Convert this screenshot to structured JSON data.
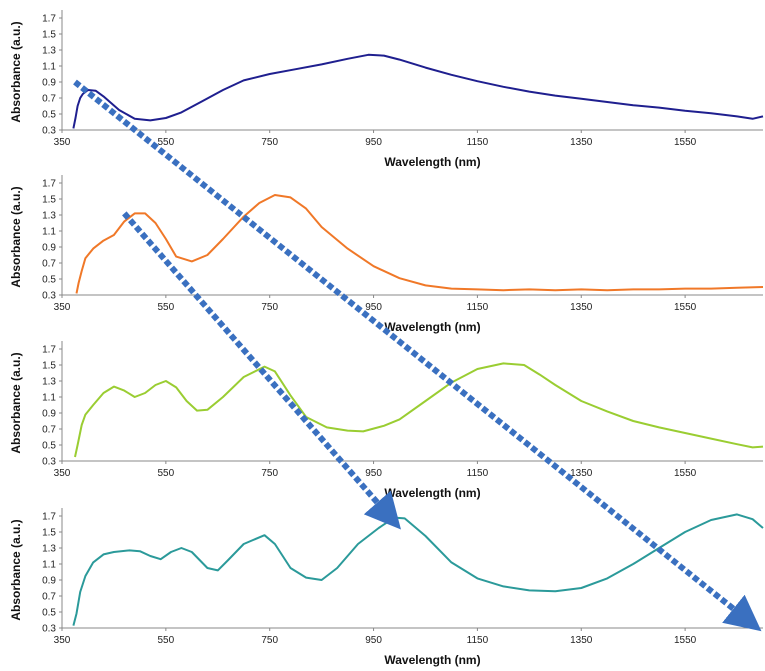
{
  "chart_data": [
    {
      "type": "line",
      "xlabel": "Wavelength (nm)",
      "ylabel": "Absorbance (a.u.)",
      "xlim": [
        350,
        1700
      ],
      "ylim": [
        0.3,
        1.75
      ],
      "xticks": [
        350,
        550,
        750,
        950,
        1150,
        1350,
        1550
      ],
      "yticks": [
        0.3,
        0.5,
        0.7,
        0.9,
        1.1,
        1.3,
        1.5,
        1.7
      ],
      "grid": false,
      "series": [
        {
          "color": "#1f1f8f",
          "x": [
            372,
            376,
            380,
            385,
            390,
            400,
            415,
            430,
            460,
            490,
            520,
            550,
            580,
            620,
            660,
            700,
            750,
            800,
            850,
            900,
            940,
            970,
            1000,
            1050,
            1100,
            1150,
            1200,
            1250,
            1300,
            1350,
            1400,
            1450,
            1500,
            1550,
            1600,
            1650,
            1680,
            1700
          ],
          "y": [
            0.32,
            0.45,
            0.6,
            0.7,
            0.75,
            0.8,
            0.79,
            0.72,
            0.55,
            0.44,
            0.42,
            0.45,
            0.52,
            0.66,
            0.8,
            0.92,
            1.0,
            1.06,
            1.12,
            1.19,
            1.24,
            1.23,
            1.18,
            1.08,
            0.99,
            0.91,
            0.84,
            0.78,
            0.73,
            0.69,
            0.65,
            0.61,
            0.58,
            0.54,
            0.51,
            0.47,
            0.44,
            0.47
          ]
        },
        {
          "color": "#f07828",
          "x": [
            378,
            382,
            388,
            395,
            410,
            430,
            450,
            470,
            490,
            510,
            530,
            550,
            570,
            600,
            630,
            660,
            700,
            730,
            760,
            790,
            820,
            850,
            900,
            950,
            1000,
            1050,
            1100,
            1150,
            1200,
            1250,
            1300,
            1350,
            1400,
            1450,
            1500,
            1550,
            1600,
            1650,
            1700
          ],
          "y": [
            0.32,
            0.45,
            0.6,
            0.76,
            0.88,
            0.98,
            1.05,
            1.22,
            1.32,
            1.32,
            1.2,
            1.0,
            0.78,
            0.72,
            0.8,
            1.0,
            1.28,
            1.45,
            1.55,
            1.52,
            1.38,
            1.15,
            0.88,
            0.66,
            0.51,
            0.42,
            0.38,
            0.37,
            0.36,
            0.37,
            0.36,
            0.37,
            0.36,
            0.37,
            0.37,
            0.38,
            0.38,
            0.39,
            0.4
          ]
        },
        {
          "color": "#9acd32",
          "x": [
            375,
            380,
            388,
            395,
            410,
            430,
            450,
            470,
            490,
            510,
            530,
            550,
            570,
            590,
            610,
            630,
            660,
            700,
            740,
            760,
            790,
            820,
            860,
            900,
            930,
            970,
            1000,
            1050,
            1100,
            1150,
            1200,
            1240,
            1270,
            1300,
            1350,
            1400,
            1450,
            1500,
            1550,
            1600,
            1650,
            1680,
            1700
          ],
          "y": [
            0.35,
            0.5,
            0.75,
            0.88,
            1.0,
            1.15,
            1.23,
            1.18,
            1.1,
            1.15,
            1.25,
            1.3,
            1.22,
            1.05,
            0.93,
            0.94,
            1.1,
            1.35,
            1.48,
            1.42,
            1.12,
            0.85,
            0.72,
            0.68,
            0.67,
            0.74,
            0.82,
            1.05,
            1.28,
            1.45,
            1.52,
            1.5,
            1.38,
            1.25,
            1.05,
            0.92,
            0.8,
            0.72,
            0.65,
            0.58,
            0.51,
            0.47,
            0.48
          ]
        },
        {
          "color": "#2b9a9a",
          "x": [
            372,
            378,
            385,
            395,
            410,
            430,
            450,
            480,
            500,
            520,
            540,
            560,
            580,
            600,
            630,
            650,
            670,
            700,
            740,
            760,
            790,
            820,
            850,
            880,
            920,
            960,
            990,
            1010,
            1050,
            1100,
            1150,
            1200,
            1250,
            1300,
            1350,
            1400,
            1450,
            1500,
            1550,
            1600,
            1650,
            1680,
            1700
          ],
          "y": [
            0.33,
            0.48,
            0.75,
            0.95,
            1.12,
            1.22,
            1.25,
            1.27,
            1.26,
            1.2,
            1.16,
            1.25,
            1.3,
            1.25,
            1.05,
            1.02,
            1.15,
            1.35,
            1.46,
            1.35,
            1.05,
            0.93,
            0.9,
            1.05,
            1.35,
            1.55,
            1.68,
            1.67,
            1.45,
            1.12,
            0.92,
            0.82,
            0.77,
            0.76,
            0.8,
            0.92,
            1.1,
            1.3,
            1.5,
            1.65,
            1.72,
            1.66,
            1.55
          ]
        }
      ],
      "annotations": [
        {
          "type": "arrow",
          "color": "#3a70c0",
          "from": [
            375,
            0.9
          ],
          "to": [
            1670,
            0.4
          ]
        },
        {
          "type": "arrow",
          "color": "#3a70c0",
          "from": [
            470,
            1.32
          ],
          "to": [
            980,
            1.7
          ]
        }
      ]
    }
  ]
}
